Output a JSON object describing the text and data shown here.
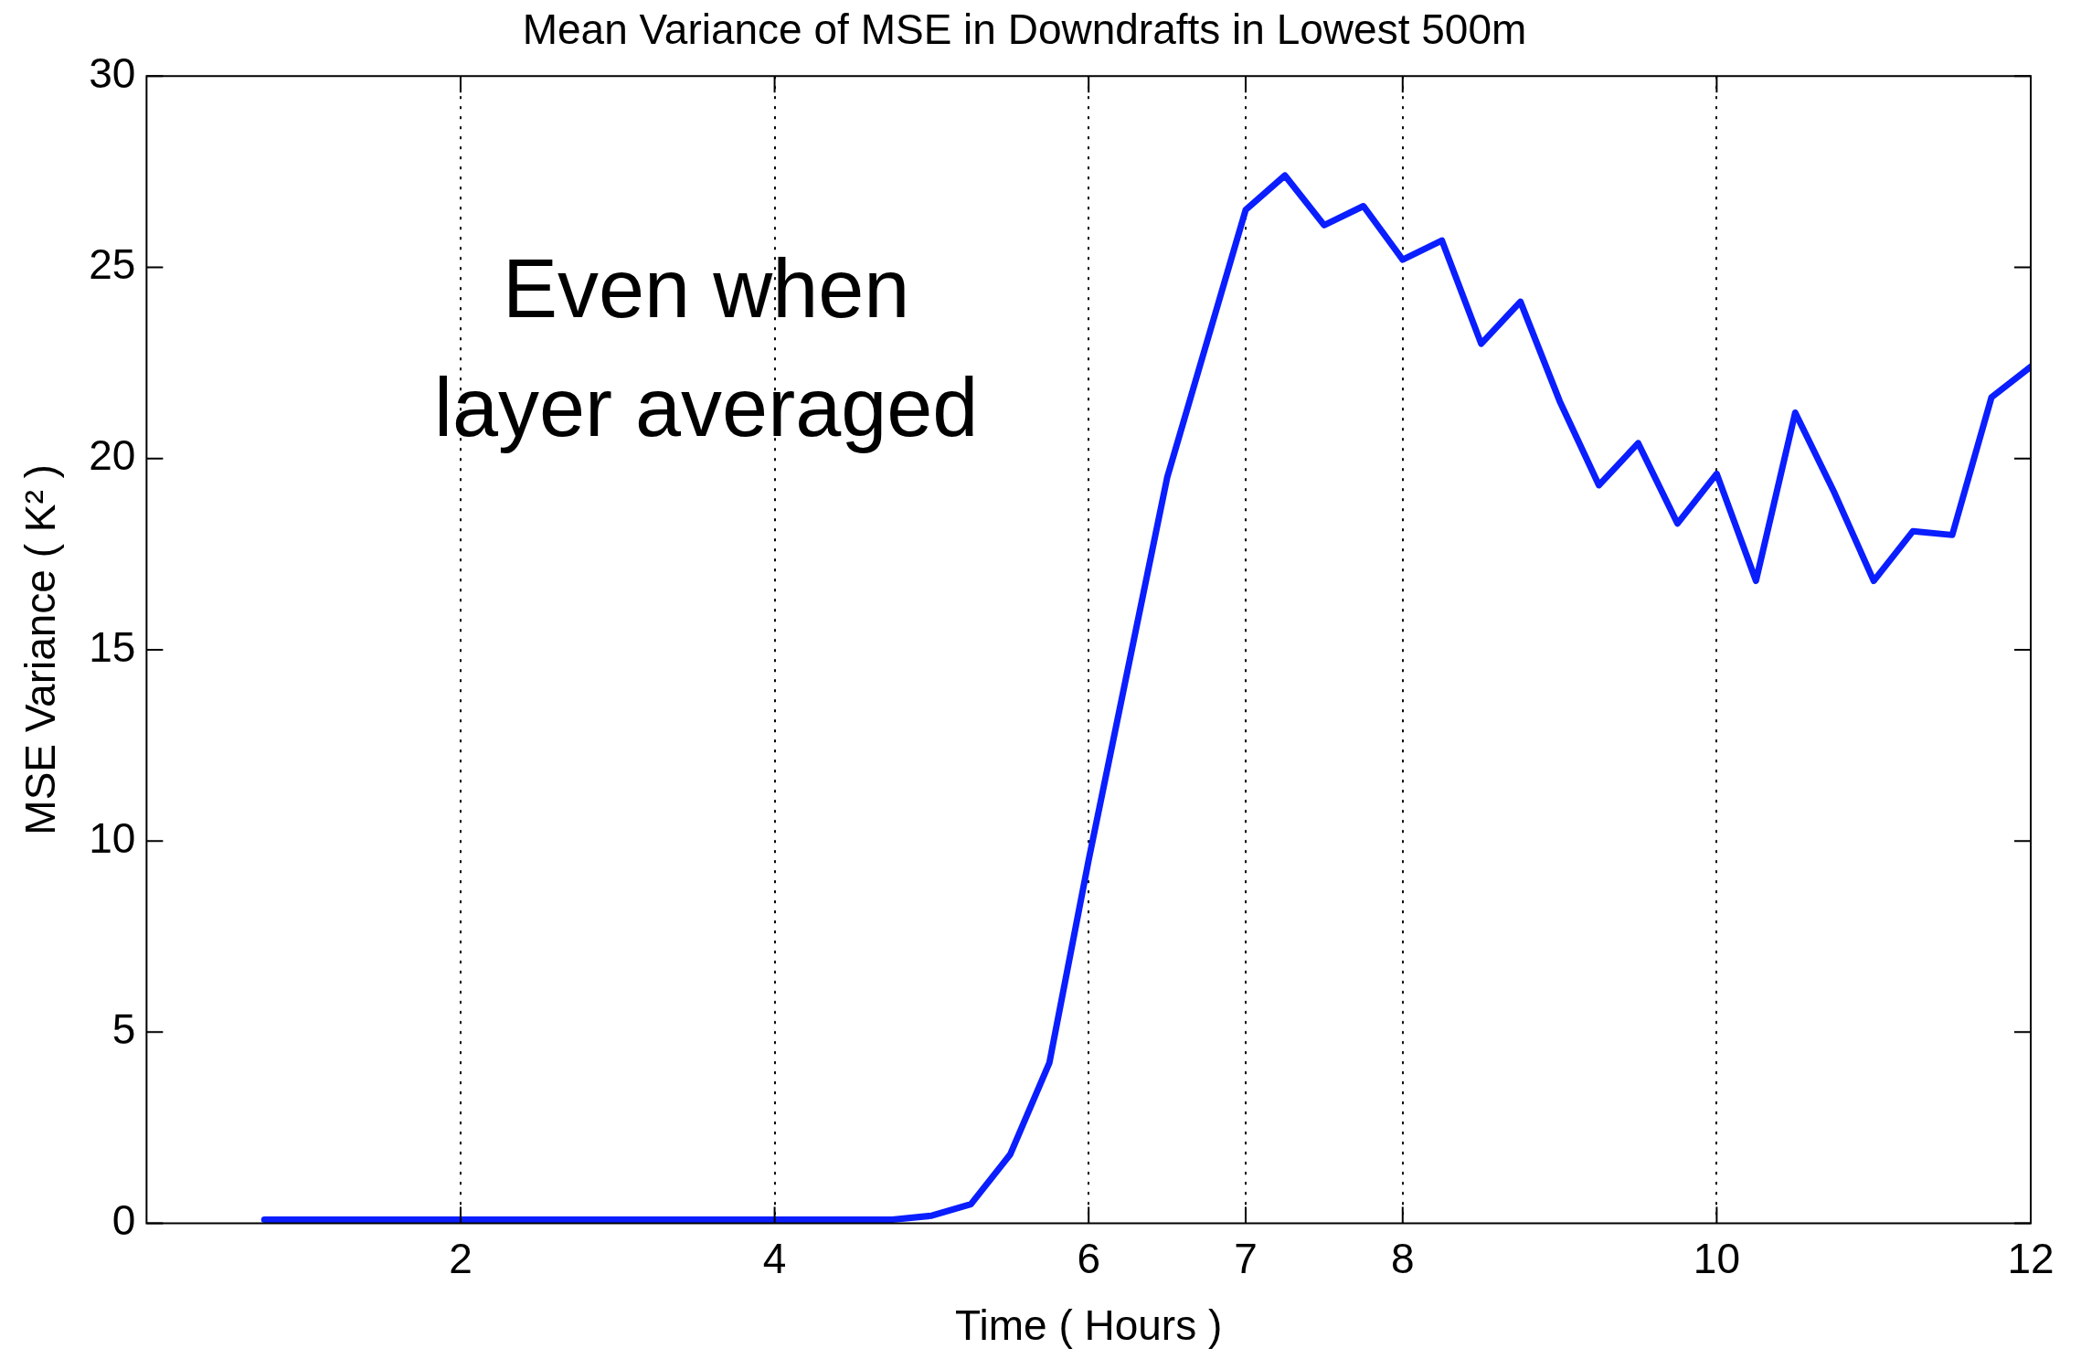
{
  "chart_data": {
    "type": "line",
    "title": "Mean Variance of MSE in Downdrafts in Lowest 500m",
    "xlabel": "Time ( Hours )",
    "ylabel": "MSE Variance ( K² )",
    "annotations": [
      "Even when layer averaged"
    ],
    "x": [
      0.75,
      1,
      1.25,
      1.5,
      1.75,
      2,
      2.25,
      2.5,
      2.75,
      3,
      3.25,
      3.5,
      3.75,
      4,
      4.25,
      4.5,
      4.75,
      5,
      5.25,
      5.5,
      5.75,
      6,
      6.25,
      6.5,
      6.75,
      7,
      7.25,
      7.5,
      7.75,
      8,
      8.25,
      8.5,
      8.75,
      9,
      9.25,
      9.5,
      9.75,
      10,
      10.25,
      10.5,
      10.75,
      11,
      11.25,
      11.5,
      11.75,
      12
    ],
    "series": [
      {
        "color": "#0a1eff",
        "values": [
          0.1,
          0.1,
          0.1,
          0.1,
          0.1,
          0.1,
          0.1,
          0.1,
          0.1,
          0.1,
          0.1,
          0.1,
          0.1,
          0.1,
          0.1,
          0.1,
          0.1,
          0.2,
          0.5,
          1.8,
          4.2,
          9.5,
          14.5,
          19.5,
          23,
          26.5,
          27.4,
          26.1,
          26.6,
          25.2,
          25.7,
          23,
          24.1,
          21.5,
          19.3,
          20.4,
          18.3,
          19.6,
          16.8,
          21.2,
          19.1,
          16.8,
          18.1,
          18,
          21.6,
          22.4
        ]
      }
    ],
    "xlim": [
      0,
      12
    ],
    "xticks": [
      2,
      4,
      6,
      7,
      8,
      10,
      12
    ],
    "ylim": [
      0,
      30
    ],
    "yticks": [
      0,
      5,
      10,
      15,
      20,
      25,
      30
    ],
    "grid": "x",
    "legend": false,
    "marker": "none",
    "line_style": "solid"
  }
}
